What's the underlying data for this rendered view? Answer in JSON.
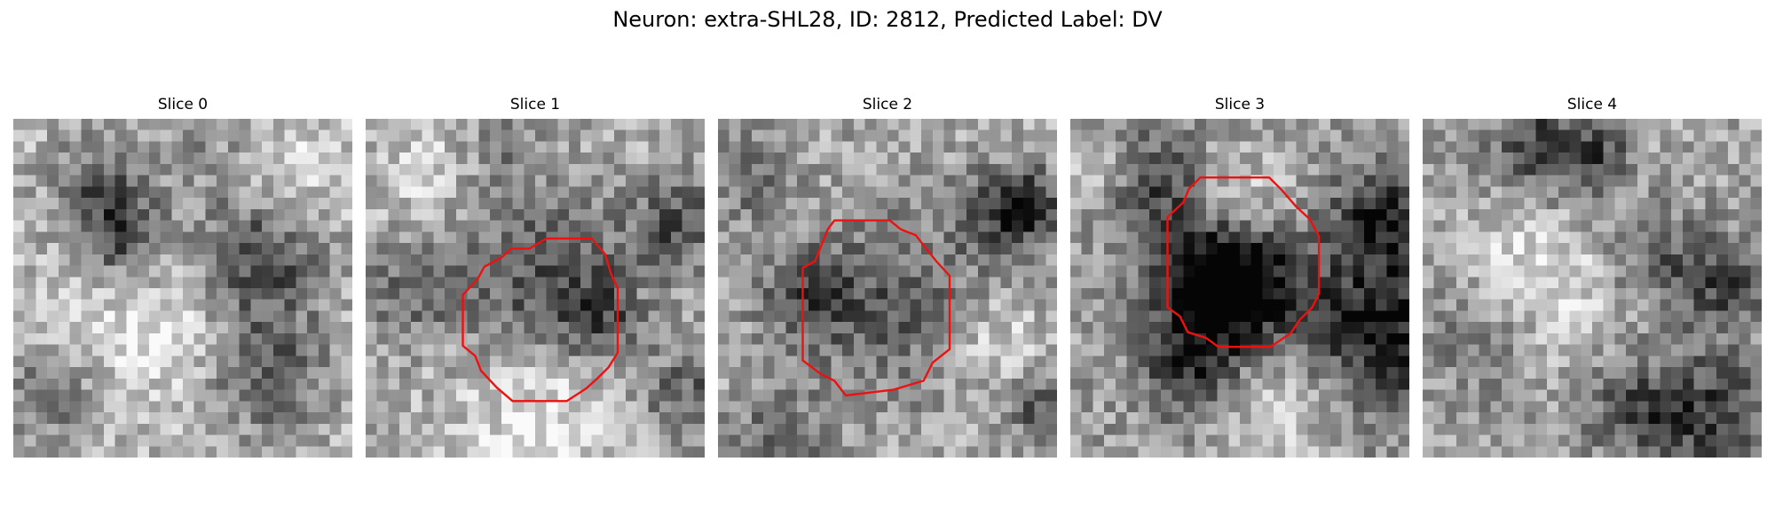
{
  "figure": {
    "title": "Neuron: extra-SHL28, ID: 2812, Predicted Label: DV"
  },
  "panels": [
    {
      "title": "Slice 0",
      "has_roi": false
    },
    {
      "title": "Slice 1",
      "has_roi": true
    },
    {
      "title": "Slice 2",
      "has_roi": true
    },
    {
      "title": "Slice 3",
      "has_roi": true
    },
    {
      "title": "Slice 4",
      "has_roi": false
    }
  ],
  "colors": {
    "roi_outline": "#ee1111",
    "colormap": "grayscale"
  }
}
